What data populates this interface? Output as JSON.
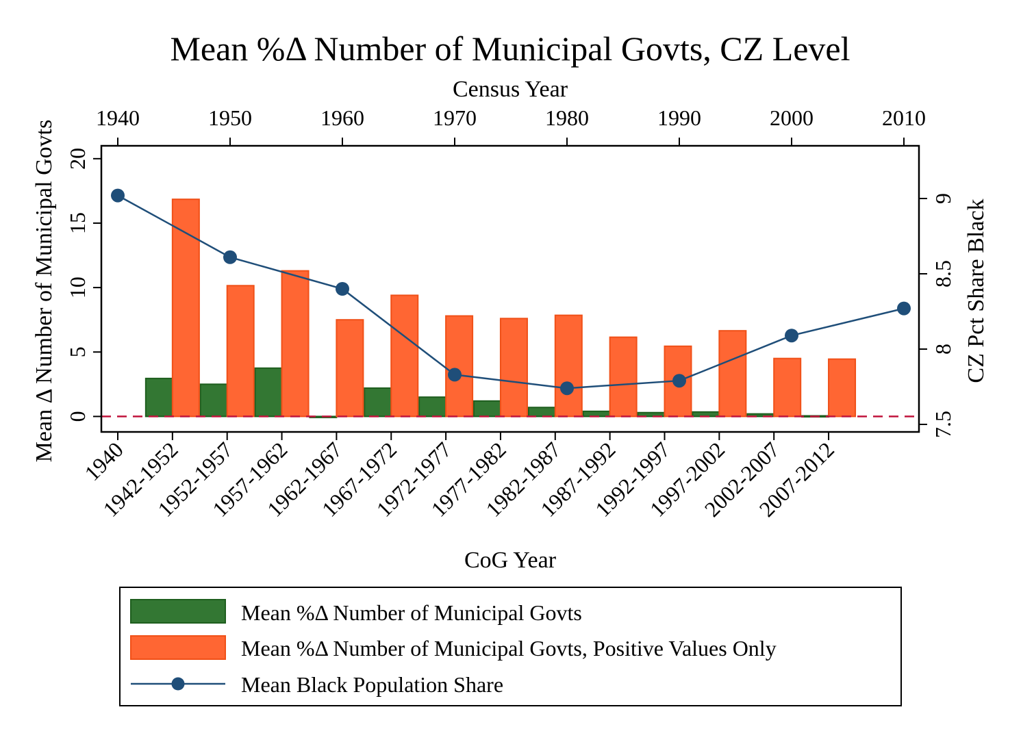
{
  "chart_data": {
    "type": "bar",
    "title": "Mean %Δ Number of Municipal Govts, CZ Level",
    "xlabel": "CoG Year",
    "x_top_label": "Census Year",
    "ylabel": "Mean Δ Number of Municipal Govts",
    "y2label": "CZ Pct Share Black",
    "ylim": [
      -1.2,
      21
    ],
    "y2lim": [
      7.45,
      9.35
    ],
    "yticks": [
      "0",
      "5",
      "10",
      "15",
      "20"
    ],
    "y2ticks": [
      "7.5",
      "8",
      "8.5",
      "9"
    ],
    "top_ticks": [
      "1940",
      "1950",
      "1960",
      "1970",
      "1980",
      "1990",
      "2000",
      "2010"
    ],
    "categories": [
      "1940",
      "1942-1952",
      "1952-1957",
      "1957-1962",
      "1962-1967",
      "1967-1972",
      "1972-1977",
      "1977-1982",
      "1982-1987",
      "1987-1992",
      "1992-1997",
      "1997-2002",
      "2002-2007",
      "2007-2012"
    ],
    "reference_line_y": 0,
    "series": [
      {
        "name": "Mean %Δ Number of Municipal Govts",
        "color": "#337733",
        "border": "#1e5e1e",
        "values": [
          null,
          2.95,
          2.5,
          3.75,
          0.0,
          2.2,
          1.5,
          1.2,
          0.7,
          0.4,
          0.3,
          0.35,
          0.2,
          0.05
        ]
      },
      {
        "name": "Mean %Δ Number of Municipal Govts, Positive Values Only",
        "color": "#ff6633",
        "border": "#f05018",
        "values": [
          null,
          16.85,
          10.15,
          11.3,
          7.5,
          9.4,
          7.8,
          7.6,
          7.85,
          6.15,
          5.45,
          6.65,
          4.5,
          4.45
        ]
      },
      {
        "name": "Mean Black Population Share",
        "type": "line",
        "axis": "right",
        "color": "#1f4e79",
        "x": [
          1940,
          1950,
          1960,
          1970,
          1980,
          1990,
          2000,
          2010
        ],
        "values": [
          9.02,
          8.61,
          8.4,
          7.83,
          7.74,
          7.79,
          8.09,
          8.27
        ]
      }
    ],
    "legend": "bottom"
  }
}
